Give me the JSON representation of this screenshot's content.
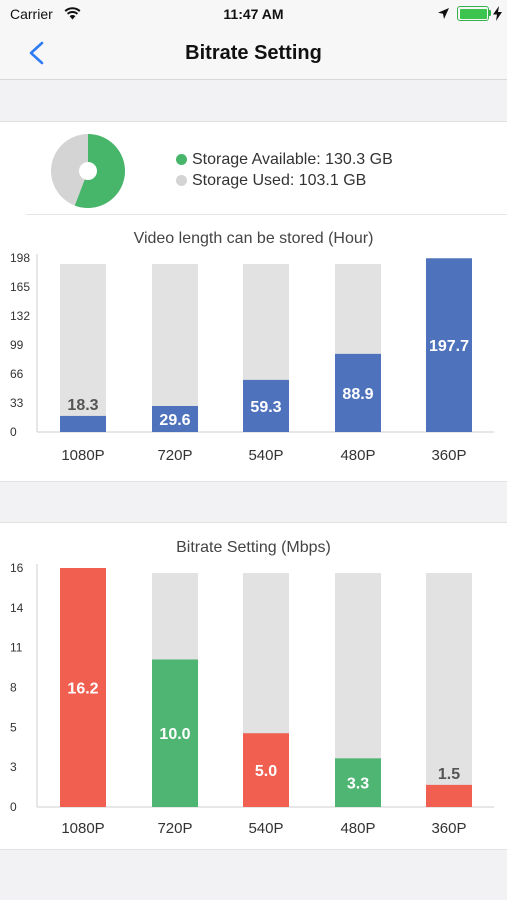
{
  "status_bar": {
    "carrier": "Carrier",
    "time": "11:47 AM"
  },
  "nav": {
    "title": "Bitrate Setting"
  },
  "storage": {
    "available_fraction": 0.558,
    "legend": [
      {
        "label": "Storage Available: 130.3 GB",
        "color": "#47b56a"
      },
      {
        "label": "Storage Used: 103.1 GB",
        "color": "#d4d4d4"
      }
    ]
  },
  "colors": {
    "blue": "#4f72bd",
    "red": "#f05f4f",
    "green": "#4fb573",
    "track": "#e2e2e2"
  },
  "video_chart": {
    "type": "bar",
    "title": "Video length can be stored (Hour)",
    "categories": [
      "1080P",
      "720P",
      "540P",
      "480P",
      "360P"
    ],
    "values": [
      18.3,
      29.6,
      59.3,
      88.9,
      197.7
    ],
    "value_labels": [
      "18.3",
      "29.6",
      "59.3",
      "88.9",
      "197.7"
    ],
    "y_ticks": [
      "0",
      "33",
      "66",
      "99",
      "132",
      "165",
      "198"
    ],
    "ylim": [
      0,
      198
    ]
  },
  "bitrate_chart": {
    "type": "bar",
    "title": "Bitrate Setting (Mbps)",
    "categories": [
      "1080P",
      "720P",
      "540P",
      "480P",
      "360P"
    ],
    "values": [
      16.2,
      10.0,
      5.0,
      3.3,
      1.5
    ],
    "value_labels": [
      "16.2",
      "10.0",
      "5.0",
      "3.3",
      "1.5"
    ],
    "bar_colors": [
      "#f05f4f",
      "#4fb573",
      "#f05f4f",
      "#4fb573",
      "#f05f4f"
    ],
    "y_ticks": [
      "0",
      "3",
      "5",
      "8",
      "11",
      "14",
      "16"
    ],
    "ylim": [
      0,
      16.2
    ]
  },
  "chart_data": [
    {
      "type": "bar",
      "title": "Video length can be stored (Hour)",
      "categories": [
        "1080P",
        "720P",
        "540P",
        "480P",
        "360P"
      ],
      "values": [
        18.3,
        29.6,
        59.3,
        88.9,
        197.7
      ],
      "ylim": [
        0,
        198
      ],
      "grid": false
    },
    {
      "type": "bar",
      "title": "Bitrate Setting (Mbps)",
      "categories": [
        "1080P",
        "720P",
        "540P",
        "480P",
        "360P"
      ],
      "values": [
        16.2,
        10.0,
        5.0,
        3.3,
        1.5
      ],
      "ylim": [
        0,
        16.2
      ],
      "grid": false
    }
  ]
}
